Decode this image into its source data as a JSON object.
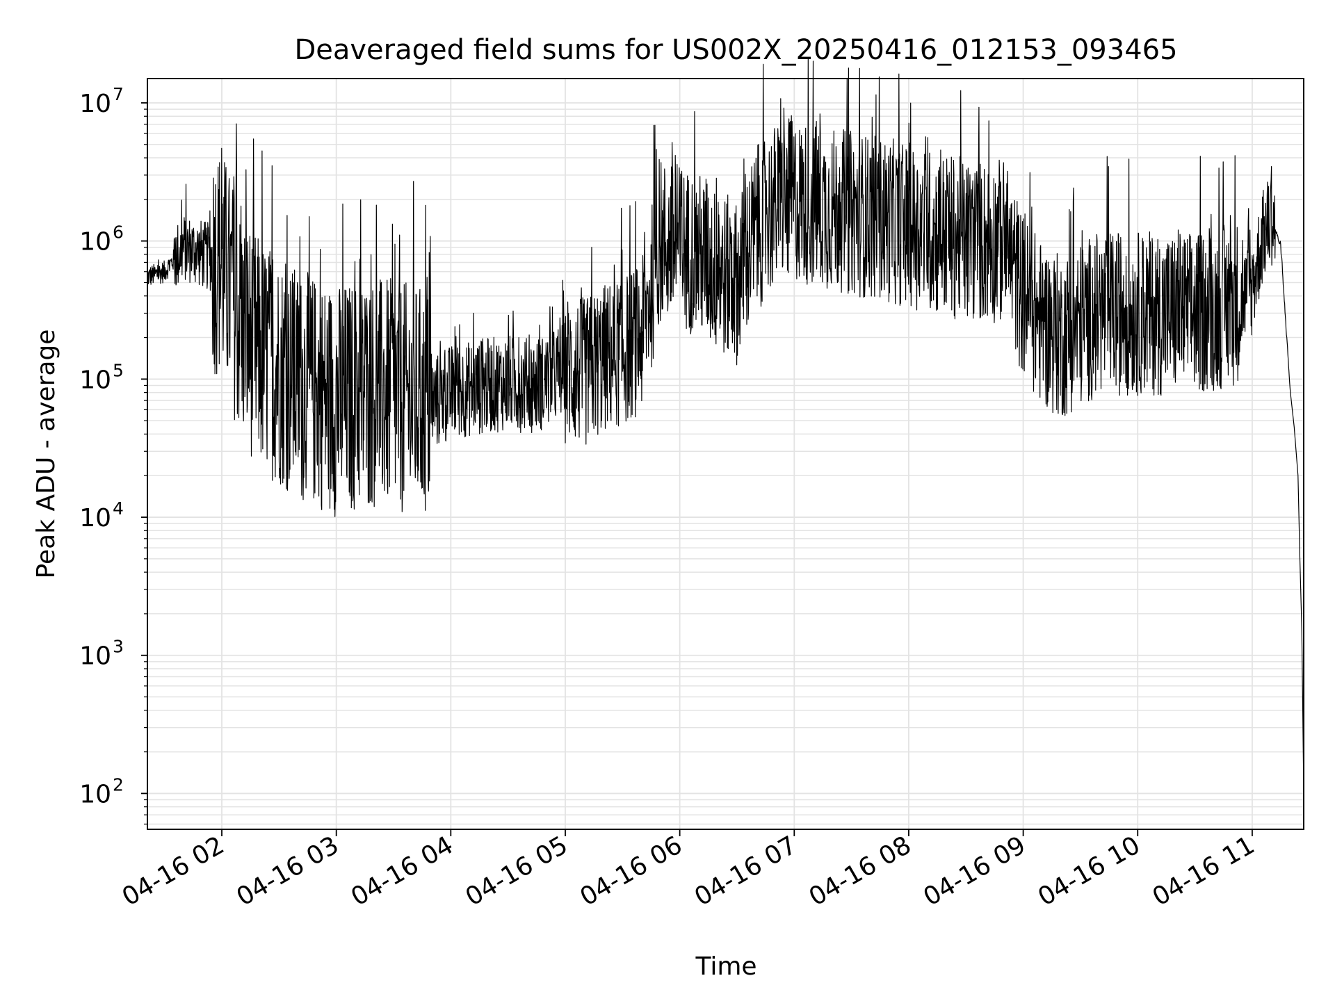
{
  "chart_data": {
    "type": "line",
    "title": "Deaveraged field sums for US002X_20250416_012153_093465",
    "xlabel": "Time",
    "ylabel": "Peak ADU - average",
    "yscale": "log",
    "ylim": [
      55,
      15000000
    ],
    "xlim": [
      "04-16 01:21",
      "04-16 11:27"
    ],
    "grid": true,
    "line_color": "#000000",
    "grid_color": "#e3e3e3",
    "x_ticks": [
      "04-16 02",
      "04-16 03",
      "04-16 04",
      "04-16 05",
      "04-16 06",
      "04-16 07",
      "04-16 08",
      "04-16 09",
      "04-16 10",
      "04-16 11"
    ],
    "y_ticks": [
      {
        "value": 100,
        "base": "10",
        "exp": "2"
      },
      {
        "value": 1000,
        "base": "10",
        "exp": "3"
      },
      {
        "value": 10000,
        "base": "10",
        "exp": "4"
      },
      {
        "value": 100000,
        "base": "10",
        "exp": "5"
      },
      {
        "value": 1000000,
        "base": "10",
        "exp": "6"
      },
      {
        "value": 10000000,
        "base": "10",
        "exp": "7"
      }
    ],
    "series": [
      {
        "x": [
          "04-16 01:21",
          "04-16 01:30",
          "04-16 01:40",
          "04-16 01:50",
          "04-16 02:00",
          "04-16 02:10",
          "04-16 02:20",
          "04-16 02:30",
          "04-16 02:40",
          "04-16 02:50",
          "04-16 03:00",
          "04-16 03:10",
          "04-16 03:20",
          "04-16 03:30",
          "04-16 03:40",
          "04-16 03:50",
          "04-16 04:00",
          "04-16 04:10",
          "04-16 04:20",
          "04-16 04:30",
          "04-16 04:40",
          "04-16 04:50",
          "04-16 05:00",
          "04-16 05:10",
          "04-16 05:20",
          "04-16 05:30",
          "04-16 05:40",
          "04-16 05:50",
          "04-16 06:00",
          "04-16 06:10",
          "04-16 06:20",
          "04-16 06:30",
          "04-16 06:40",
          "04-16 06:50",
          "04-16 07:00",
          "04-16 07:10",
          "04-16 07:20",
          "04-16 07:30",
          "04-16 07:40",
          "04-16 07:50",
          "04-16 08:00",
          "04-16 08:10",
          "04-16 08:20",
          "04-16 08:30",
          "04-16 08:40",
          "04-16 08:50",
          "04-16 09:00",
          "04-16 09:10",
          "04-16 09:20",
          "04-16 09:30",
          "04-16 09:40",
          "04-16 09:50",
          "04-16 10:00",
          "04-16 10:10",
          "04-16 10:20",
          "04-16 10:30",
          "04-16 10:40",
          "04-16 10:50",
          "04-16 11:00",
          "04-16 11:05",
          "04-16 11:10",
          "04-16 11:15",
          "04-16 11:20",
          "04-16 11:25",
          "04-16 11:27"
        ],
        "y": [
          550000,
          600000,
          900000,
          800000,
          700000,
          250000,
          150000,
          120000,
          90000,
          80000,
          70000,
          75000,
          80000,
          75000,
          70000,
          65000,
          80000,
          85000,
          90000,
          95000,
          90000,
          95000,
          120000,
          110000,
          140000,
          160000,
          200000,
          1000000,
          900000,
          800000,
          600000,
          500000,
          1200000,
          1800000,
          2000000,
          1800000,
          1700000,
          1600000,
          1500000,
          1400000,
          1300000,
          1200000,
          1100000,
          1000000,
          1000000,
          1000000,
          400000,
          250000,
          200000,
          250000,
          300000,
          300000,
          300000,
          300000,
          300000,
          300000,
          320000,
          350000,
          450000,
          1000000,
          1500000,
          900000,
          80000,
          30000,
          100
        ]
      }
    ]
  }
}
